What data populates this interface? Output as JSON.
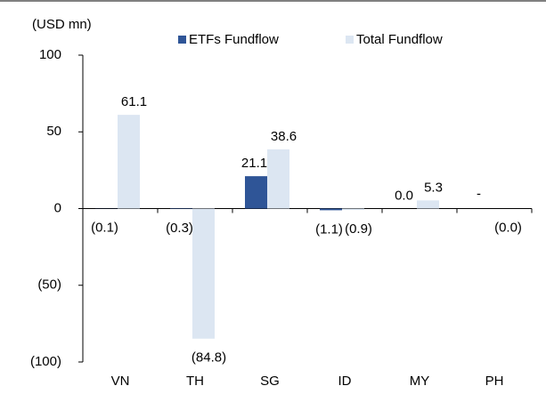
{
  "chart_data": {
    "type": "bar",
    "y_label": "(USD mn)",
    "categories": [
      "VN",
      "TH",
      "SG",
      "ID",
      "MY",
      "PH"
    ],
    "series": [
      {
        "name": "ETFs Fundflow",
        "color": "#2f5597",
        "values": [
          -0.1,
          -0.3,
          21.1,
          -1.1,
          0.0,
          null
        ],
        "value_labels": [
          "(0.1)",
          "(0.3)",
          "21.1",
          "(1.1)",
          "0.0",
          "-"
        ]
      },
      {
        "name": "Total Fundflow",
        "color": "#dce6f2",
        "values": [
          61.1,
          -84.8,
          38.6,
          -0.9,
          5.3,
          -0.0
        ],
        "value_labels": [
          "61.1",
          "(84.8)",
          "38.6",
          "(0.9)",
          "5.3",
          "(0.0)"
        ]
      }
    ],
    "ylim": [
      -100,
      100
    ],
    "yticks": [
      {
        "value": -100,
        "label": "(100)"
      },
      {
        "value": -50,
        "label": "(50)"
      },
      0,
      50,
      100
    ],
    "legend": "top"
  }
}
